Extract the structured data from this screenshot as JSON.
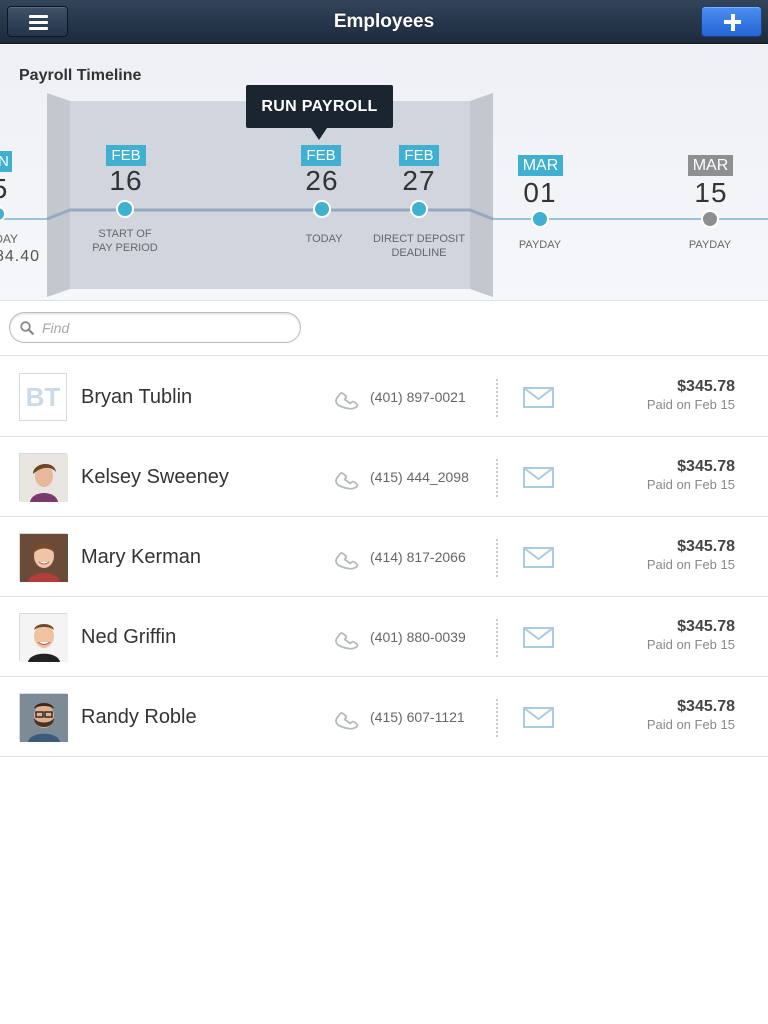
{
  "header": {
    "title": "Employees",
    "menu_icon": "hamburger-menu-icon",
    "add_icon": "plus-icon"
  },
  "timeline": {
    "title": "Payroll Timeline",
    "tooltip": "RUN PAYROLL",
    "colors": {
      "accent": "#3fb0cf",
      "muted": "#8d8f91",
      "focus_band": "#d1d5de"
    },
    "milestones": [
      {
        "month": "N",
        "day": "5",
        "caption": "DAY",
        "extra": "84.40"
      },
      {
        "month": "FEB",
        "day": "16",
        "caption": "START OF\nPAY PERIOD"
      },
      {
        "month": "FEB",
        "day": "26",
        "caption": "TODAY"
      },
      {
        "month": "FEB",
        "day": "27",
        "caption": "DIRECT DEPOSIT\nDEADLINE"
      },
      {
        "month": "MAR",
        "day": "01",
        "caption": "PAYDAY"
      },
      {
        "month": "MAR",
        "day": "15",
        "caption": "PAYDAY"
      }
    ]
  },
  "search": {
    "placeholder": "Find"
  },
  "employees": [
    {
      "name": "Bryan Tublin",
      "initials": "BT",
      "phone": "(401) 897-0021",
      "amount": "$345.78",
      "paid": "Paid on Feb 15"
    },
    {
      "name": "Kelsey Sweeney",
      "phone": "(415) 444_2098",
      "amount": "$345.78",
      "paid": "Paid on Feb 15"
    },
    {
      "name": "Mary Kerman",
      "phone": "(414) 817-2066",
      "amount": "$345.78",
      "paid": "Paid on Feb 15"
    },
    {
      "name": "Ned Griffin",
      "phone": "(401) 880-0039",
      "amount": "$345.78",
      "paid": "Paid on Feb 15"
    },
    {
      "name": "Randy Roble",
      "phone": "(415) 607-1121",
      "amount": "$345.78",
      "paid": "Paid on Feb 15"
    }
  ]
}
